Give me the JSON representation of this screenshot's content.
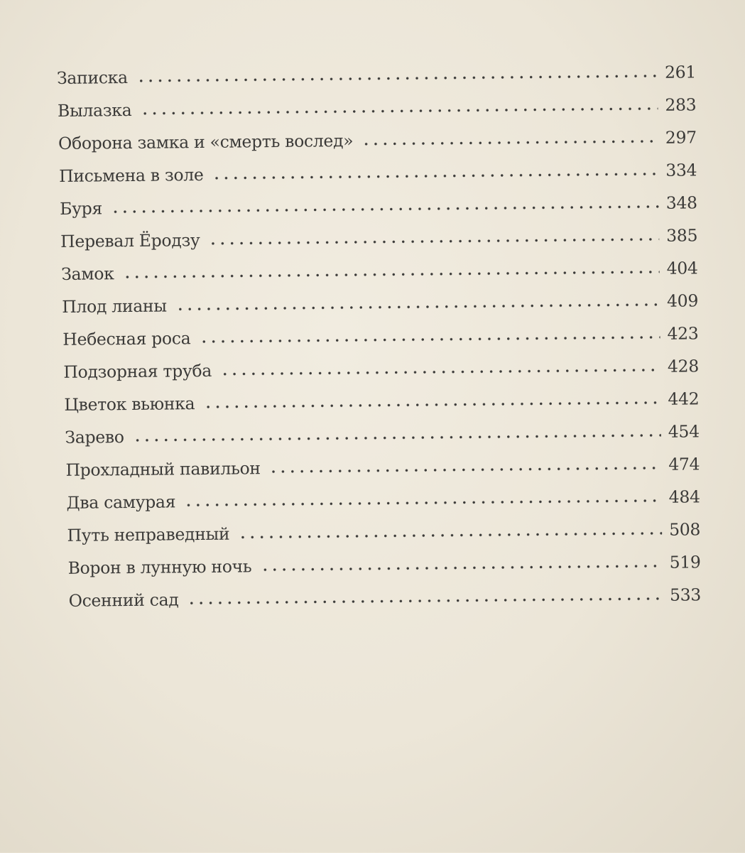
{
  "toc": [
    {
      "title": "Записка",
      "page": "261"
    },
    {
      "title": "Вылазка",
      "page": "283"
    },
    {
      "title": "Оборона замка и «смерть вослед»",
      "page": "297"
    },
    {
      "title": "Письмена в золе",
      "page": "334"
    },
    {
      "title": "Буря",
      "page": "348"
    },
    {
      "title": "Перевал Ёродзу",
      "page": "385"
    },
    {
      "title": "Замок",
      "page": "404"
    },
    {
      "title": "Плод лианы",
      "page": "409"
    },
    {
      "title": "Небесная роса",
      "page": "423"
    },
    {
      "title": "Подзорная труба",
      "page": "428"
    },
    {
      "title": "Цветок вьюнка",
      "page": "442"
    },
    {
      "title": "Зарево",
      "page": "454"
    },
    {
      "title": "Прохладный павильон",
      "page": "474"
    },
    {
      "title": "Два самурая",
      "page": "484"
    },
    {
      "title": "Путь неправедный",
      "page": "508"
    },
    {
      "title": "Ворон в лунную ночь",
      "page": "519"
    },
    {
      "title": "Осенний сад",
      "page": "533"
    }
  ]
}
